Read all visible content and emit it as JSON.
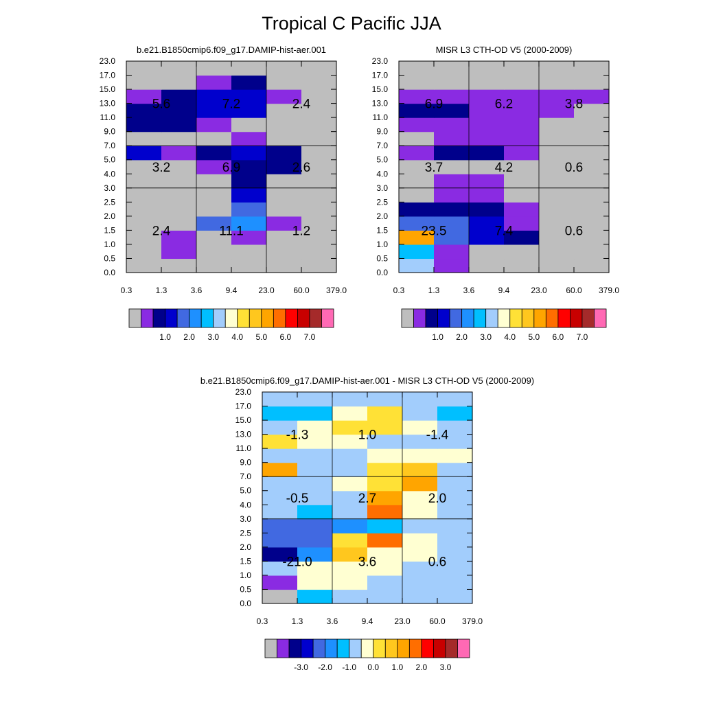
{
  "figure": {
    "title": "Tropical C Pacific JJA"
  },
  "palette": [
    "#bebebe",
    "#8a2be2",
    "#00008b",
    "#0000cd",
    "#4169e1",
    "#1e90ff",
    "#00bfff",
    "#a2cdfc",
    "#ffffd2",
    "#ffe136",
    "#ffc71e",
    "#ffa500",
    "#ff6e00",
    "#ff0000",
    "#c80000",
    "#a52a2a",
    "#ff69b4"
  ],
  "chart_data": [
    {
      "type": "heatmap",
      "title": "b.e21.B1850cmip6.f09_g17.DAMIP-hist-aer.001",
      "x_tick_labels": [
        "0.3",
        "1.3",
        "3.6",
        "9.4",
        "23.0",
        "60.0",
        "379.0"
      ],
      "y_tick_labels": [
        "0.0",
        "0.5",
        "1.0",
        "1.5",
        "2.0",
        "2.5",
        "3.0",
        "4.0",
        "5.0",
        "7.0",
        "9.0",
        "11.0",
        "13.0",
        "15.0",
        "17.0",
        "23.0"
      ],
      "cells": [
        [
          0,
          0,
          0,
          0,
          0,
          0
        ],
        [
          0,
          1,
          0,
          0,
          0,
          0
        ],
        [
          0,
          1,
          0,
          1,
          0,
          0
        ],
        [
          0,
          0,
          4,
          5,
          1,
          0
        ],
        [
          0,
          0,
          0,
          4,
          0,
          0
        ],
        [
          0,
          0,
          0,
          3,
          0,
          0
        ],
        [
          0,
          0,
          0,
          2,
          0,
          0
        ],
        [
          0,
          0,
          1,
          2,
          2,
          0
        ],
        [
          3,
          1,
          2,
          3,
          2,
          0
        ],
        [
          0,
          0,
          0,
          1,
          0,
          0
        ],
        [
          2,
          2,
          1,
          0,
          0,
          0
        ],
        [
          2,
          2,
          3,
          3,
          0,
          0
        ],
        [
          1,
          2,
          3,
          3,
          1,
          0
        ],
        [
          0,
          0,
          1,
          2,
          0,
          0
        ],
        [
          0,
          0,
          0,
          0,
          0,
          0
        ]
      ],
      "group_values": [
        [
          "2.4",
          "11.1",
          "1.2"
        ],
        [
          "3.2",
          "6.9",
          "2.6"
        ],
        [
          "5.6",
          "7.2",
          "2.4"
        ]
      ],
      "colorbar_labels": [
        "1.0",
        "2.0",
        "3.0",
        "4.0",
        "5.0",
        "6.0",
        "7.0"
      ]
    },
    {
      "type": "heatmap",
      "title": "MISR L3 CTH-OD V5 (2000-2009)",
      "x_tick_labels": [
        "0.3",
        "1.3",
        "3.6",
        "9.4",
        "23.0",
        "60.0",
        "379.0"
      ],
      "y_tick_labels": [
        "0.0",
        "0.5",
        "1.0",
        "1.5",
        "2.0",
        "2.5",
        "3.0",
        "4.0",
        "5.0",
        "7.0",
        "9.0",
        "11.0",
        "13.0",
        "15.0",
        "17.0",
        "23.0"
      ],
      "cells": [
        [
          7,
          1,
          0,
          0,
          0,
          0
        ],
        [
          6,
          1,
          0,
          0,
          0,
          0
        ],
        [
          11,
          4,
          3,
          2,
          0,
          0
        ],
        [
          4,
          4,
          3,
          1,
          0,
          0
        ],
        [
          2,
          2,
          2,
          1,
          0,
          0
        ],
        [
          0,
          1,
          1,
          0,
          0,
          0
        ],
        [
          0,
          1,
          1,
          0,
          0,
          0
        ],
        [
          0,
          0,
          0,
          0,
          0,
          0
        ],
        [
          1,
          2,
          2,
          1,
          0,
          0
        ],
        [
          0,
          1,
          1,
          1,
          0,
          0
        ],
        [
          1,
          1,
          1,
          1,
          0,
          0
        ],
        [
          2,
          2,
          1,
          1,
          1,
          0
        ],
        [
          1,
          1,
          1,
          1,
          1,
          1
        ],
        [
          0,
          0,
          0,
          0,
          0,
          0
        ],
        [
          0,
          0,
          0,
          0,
          0,
          0
        ]
      ],
      "group_values": [
        [
          "23.5",
          "7.4",
          "0.6"
        ],
        [
          "3.7",
          "4.2",
          "0.6"
        ],
        [
          "6.9",
          "6.2",
          "3.8"
        ]
      ],
      "colorbar_labels": [
        "1.0",
        "2.0",
        "3.0",
        "4.0",
        "5.0",
        "6.0",
        "7.0"
      ]
    },
    {
      "type": "heatmap",
      "title": "b.e21.B1850cmip6.f09_g17.DAMIP-hist-aer.001 - MISR L3 CTH-OD V5 (2000-2009)",
      "x_tick_labels": [
        "0.3",
        "1.3",
        "3.6",
        "9.4",
        "23.0",
        "60.0",
        "379.0"
      ],
      "y_tick_labels": [
        "0.0",
        "0.5",
        "1.0",
        "1.5",
        "2.0",
        "2.5",
        "3.0",
        "4.0",
        "5.0",
        "7.0",
        "9.0",
        "11.0",
        "13.0",
        "15.0",
        "17.0",
        "23.0"
      ],
      "cells": [
        [
          0,
          6,
          7,
          7,
          7,
          7
        ],
        [
          1,
          8,
          8,
          7,
          7,
          7
        ],
        [
          7,
          8,
          8,
          8,
          7,
          7
        ],
        [
          2,
          5,
          10,
          8,
          8,
          7
        ],
        [
          4,
          4,
          9,
          12,
          8,
          7
        ],
        [
          4,
          4,
          5,
          6,
          7,
          7
        ],
        [
          7,
          6,
          7,
          12,
          8,
          7
        ],
        [
          7,
          7,
          7,
          11,
          8,
          7
        ],
        [
          7,
          7,
          8,
          9,
          11,
          7
        ],
        [
          11,
          7,
          7,
          9,
          10,
          7
        ],
        [
          7,
          7,
          7,
          8,
          8,
          8
        ],
        [
          9,
          8,
          8,
          7,
          7,
          7
        ],
        [
          7,
          8,
          9,
          9,
          8,
          7
        ],
        [
          6,
          6,
          8,
          9,
          7,
          6
        ],
        [
          7,
          7,
          7,
          7,
          7,
          7
        ]
      ],
      "group_values": [
        [
          "-21.0",
          "3.6",
          "0.6"
        ],
        [
          "-0.5",
          "2.7",
          "2.0"
        ],
        [
          "-1.3",
          "1.0",
          "-1.4"
        ]
      ],
      "colorbar_labels": [
        "-3.0",
        "-2.0",
        "-1.0",
        "0.0",
        "1.0",
        "2.0",
        "3.0"
      ]
    }
  ]
}
